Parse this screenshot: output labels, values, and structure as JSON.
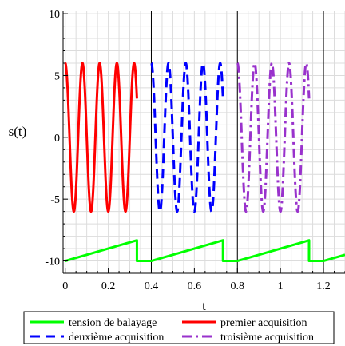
{
  "chart_data": {
    "type": "line",
    "title": "",
    "xlabel": "t",
    "ylabel": "s(t)",
    "xlim": [
      -0.01,
      1.3
    ],
    "ylim": [
      -11,
      10.2
    ],
    "x_ticks": [
      0,
      0.2,
      0.4,
      0.6,
      0.8,
      1,
      1.2
    ],
    "x_tick_labels": [
      "0",
      "0.2",
      "0.4",
      "0.6",
      "0.8",
      "1",
      "1.2"
    ],
    "y_ticks": [
      -10,
      -5,
      0,
      5,
      10
    ],
    "y_tick_labels": [
      "-10",
      "-5",
      "0",
      "5",
      "10"
    ],
    "grid": true,
    "legend_position": "bottom",
    "vertical_lines_x": [
      0.4,
      0.8,
      1.2
    ],
    "series": [
      {
        "name": "tension de balayage",
        "color": "#00ff00",
        "dash": "solid",
        "points": [
          [
            0,
            -10
          ],
          [
            0.333,
            -8.33
          ],
          [
            0.333,
            -10
          ],
          [
            0.4,
            -10
          ],
          [
            0.733,
            -8.33
          ],
          [
            0.733,
            -10
          ],
          [
            0.8,
            -10
          ],
          [
            1.133,
            -8.33
          ],
          [
            1.133,
            -10
          ],
          [
            1.2,
            -10
          ],
          [
            1.3,
            -9.5
          ]
        ]
      },
      {
        "name": "premier acquisition",
        "color": "#ff0000",
        "dash": "solid",
        "amplitude": 6,
        "frequency": 12.5,
        "t_range": [
          0,
          0.333
        ]
      },
      {
        "name": "deuxième acquisition",
        "color": "#0000ff",
        "dash": "dash",
        "amplitude": 6,
        "frequency": 12.5,
        "t_range": [
          0.4,
          0.733
        ]
      },
      {
        "name": "troisième acquisition",
        "color": "#9932cc",
        "dash": "dashdot",
        "amplitude": 6,
        "frequency": 12.5,
        "t_range": [
          0.8,
          1.133
        ]
      }
    ]
  }
}
